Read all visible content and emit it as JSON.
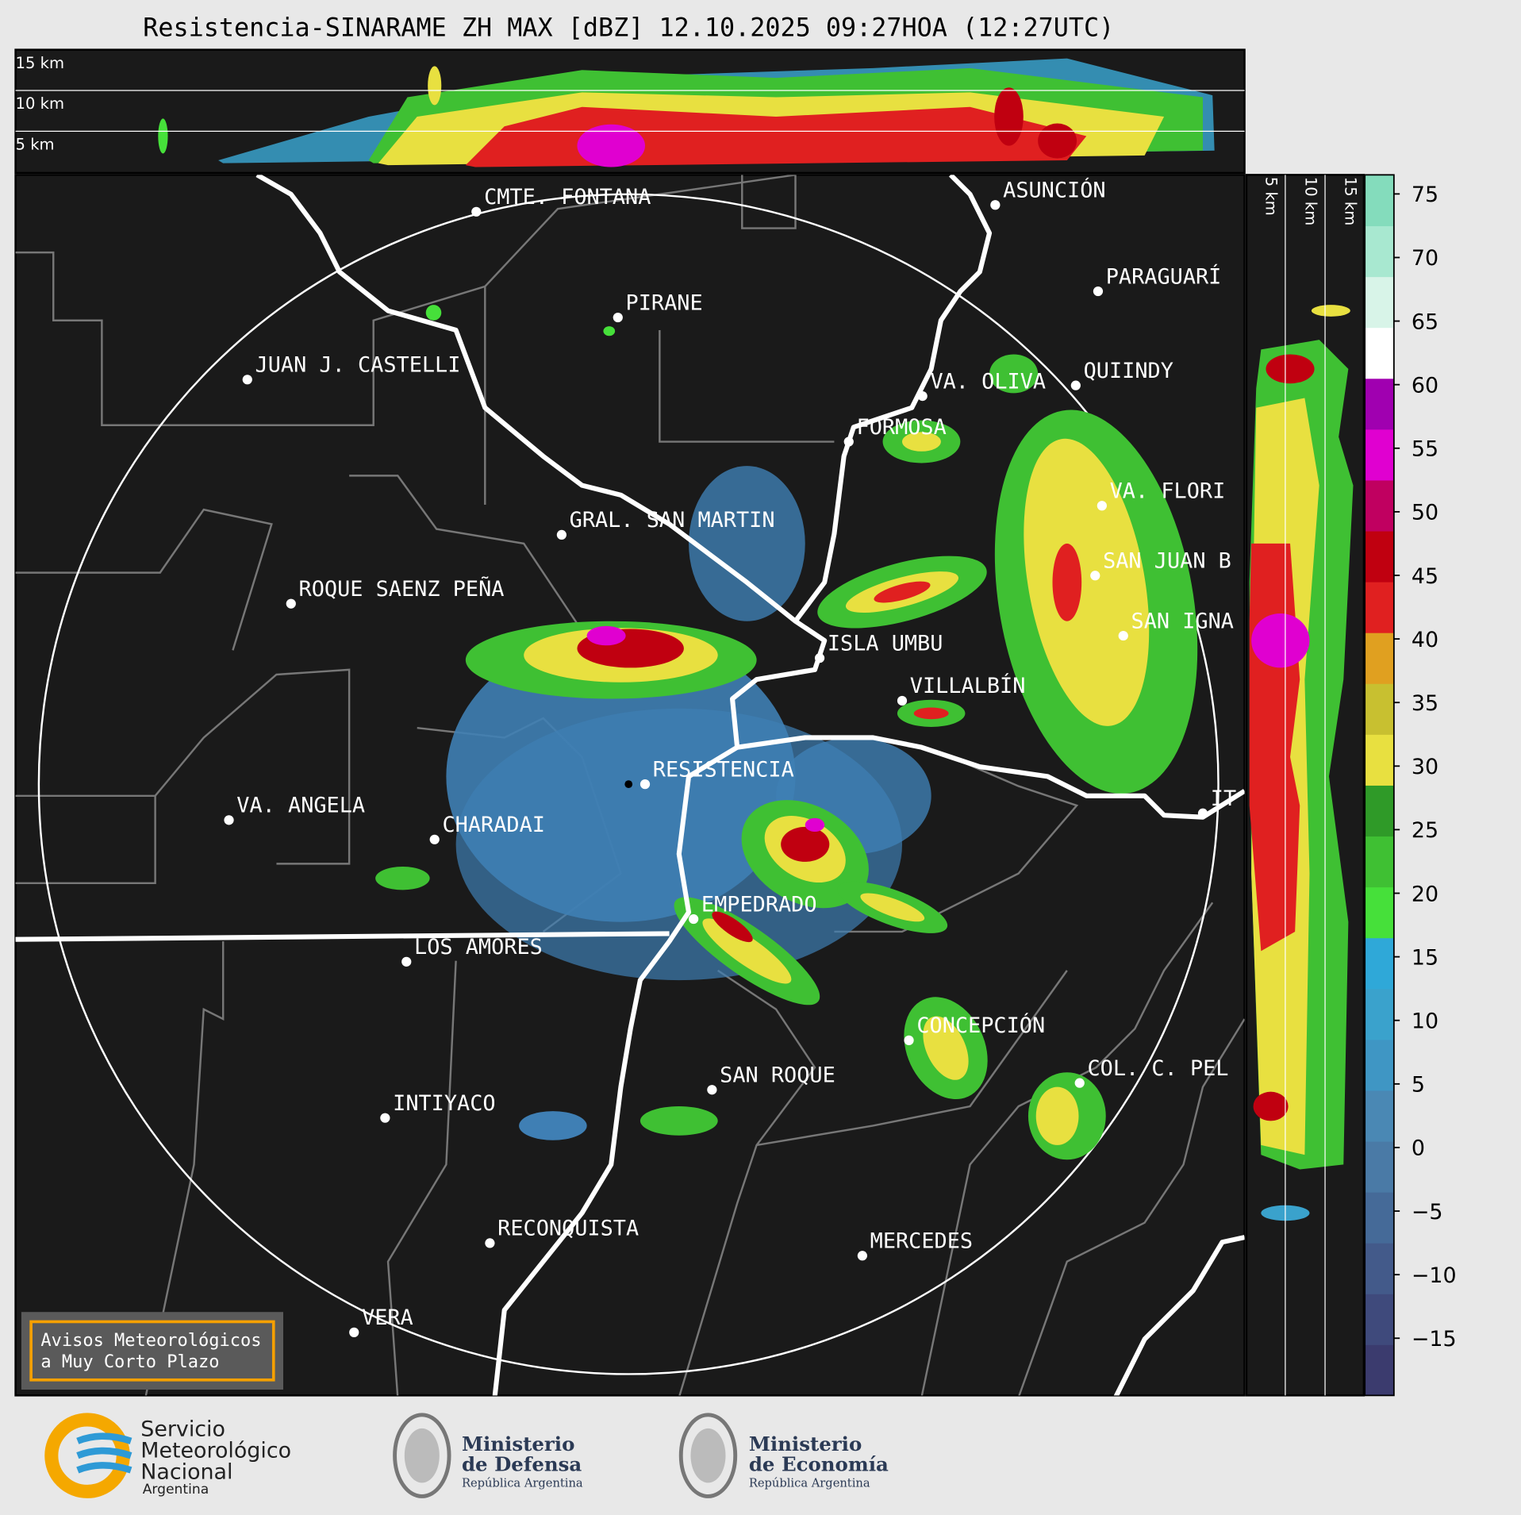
{
  "header": {
    "title": "Resistencia-SINARAME ZH MAX [dBZ] 12.10.2025 09:27HOA (12:27UTC)"
  },
  "cross_section_top": {
    "altitude_labels": [
      "15 km",
      "10 km",
      "5 km"
    ]
  },
  "cross_section_side": {
    "altitude_labels": [
      "5 km",
      "10 km",
      "15 km"
    ]
  },
  "map": {
    "places": [
      "CMTE. FONTANA",
      "ASUNCIÓN",
      "PARAGUARÍ",
      "PIRANE",
      "JUAN J. CASTELLI",
      "VA. OLIVA",
      "QUIINDY",
      "FORMOSA",
      "VA. FLORI",
      "GRAL. SAN MARTIN",
      "SAN JUAN B",
      "ROQUE SAENZ PEÑA",
      "SAN IGNA",
      "ISLA UMBU",
      "VILLALBÍN",
      "RESISTENCIA",
      "VA. ANGELA",
      "CHARADAI",
      "EMPEDRADO",
      "LOS AMORES",
      "CONCEPCIÓN",
      "COL. C. PEL",
      "SAN ROQUE",
      "INTIYACO",
      "RECONQUISTA",
      "MERCEDES",
      "VERA",
      "IT"
    ]
  },
  "colorbar": {
    "ylim": [
      -19.5,
      76.5
    ],
    "yticks": [
      {
        "value": -15,
        "label": "−15"
      },
      {
        "value": -10,
        "label": "−10"
      },
      {
        "value": -5,
        "label": "−5"
      },
      0,
      5,
      10,
      15,
      20,
      25,
      30,
      35,
      40,
      45,
      50,
      55,
      60,
      65,
      70,
      75
    ],
    "colors": [
      "#3b3b6e",
      "#3f4a7c",
      "#435a8a",
      "#456a98",
      "#4a7aa6",
      "#4a88b4",
      "#3f96c4",
      "#3aa2cc",
      "#2fa8d8",
      "#46e03a",
      "#3fc033",
      "#2f9a28",
      "#e8e040",
      "#c8c030",
      "#e0a020",
      "#e02020",
      "#c00010",
      "#c00060",
      "#e000d0",
      "#a000b0",
      "#ffffff",
      "#d8f4e8",
      "#a8e8d0",
      "#84dcbc"
    ]
  },
  "notice": {
    "lines": [
      "Avisos Meteorológicos",
      "a Muy Corto Plazo"
    ]
  },
  "footer": {
    "smn": [
      "Servicio",
      "Meteorológico",
      "Nacional",
      "Argentina"
    ],
    "defensa": {
      "title": [
        "Ministerio",
        "de Defensa"
      ],
      "subtitle": "República Argentina"
    },
    "economia": {
      "title": [
        "Ministerio",
        "de Economía"
      ],
      "subtitle": "República Argentina"
    }
  }
}
